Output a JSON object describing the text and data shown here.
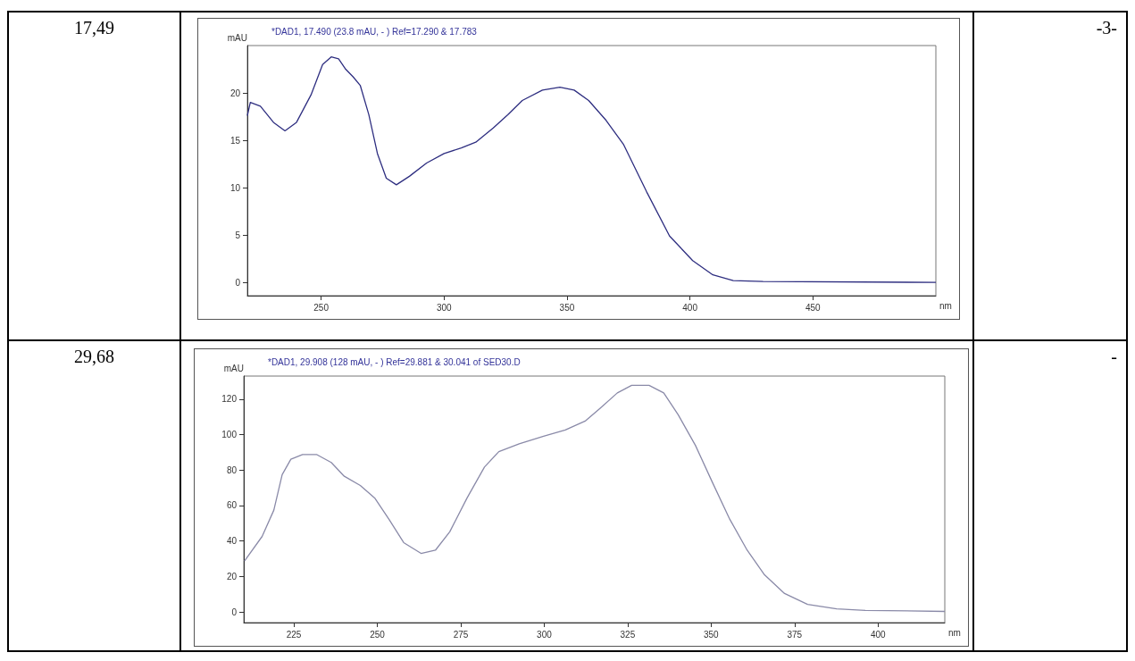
{
  "chart_data": [
    {
      "type": "line",
      "ylabel": "mAU",
      "xlabel": "nm",
      "xlim": [
        220,
        500
      ],
      "xticks": [
        250,
        300,
        350,
        400,
        450
      ],
      "ylim": [
        -1.4,
        25
      ],
      "yticks": [
        0,
        5,
        10,
        15,
        20
      ],
      "legend": "top",
      "grid": false,
      "annotations": [
        "17,49",
        "-3-"
      ],
      "series": [
        {
          "name": "*DAD1, 17.490 (23.8 mAU, - ) Ref=17.290 & 17.783",
          "color": "#2e2e80",
          "x": [
            220,
            221.2,
            225.3,
            230.6,
            235.3,
            240,
            245.9,
            250.6,
            254.1,
            257.1,
            260,
            263,
            265.9,
            269.4,
            272.9,
            276.5,
            280.6,
            285.9,
            292.9,
            300,
            307,
            312.9,
            320,
            325.9,
            331.8,
            340,
            347.1,
            352.9,
            358.8,
            365.9,
            372.9,
            382.3,
            391.7,
            401.1,
            409.3,
            417.6,
            429.7,
            500
          ],
          "values": [
            17.6,
            19.0,
            18.6,
            16.9,
            16.0,
            16.9,
            19.8,
            23.0,
            23.8,
            23.6,
            22.5,
            21.7,
            20.8,
            17.7,
            13.6,
            11.0,
            10.3,
            11.2,
            12.6,
            13.6,
            14.2,
            14.8,
            16.3,
            17.7,
            19.2,
            20.3,
            20.6,
            20.3,
            19.2,
            17.1,
            14.6,
            9.6,
            4.9,
            2.3,
            0.8,
            0.2,
            0.1,
            0
          ]
        }
      ]
    },
    {
      "type": "line",
      "ylabel": "mAU",
      "xlabel": "nm",
      "xlim": [
        210,
        420
      ],
      "xticks": [
        225,
        250,
        275,
        300,
        325,
        350,
        375,
        400
      ],
      "ylim": [
        -6,
        133
      ],
      "yticks": [
        0,
        20,
        40,
        60,
        80,
        100,
        120
      ],
      "legend": "top",
      "grid": false,
      "annotations": [
        "29,68",
        "-"
      ],
      "series": [
        {
          "name": "*DAD1, 29.908 (128 mAU, - ) Ref=29.881 & 30.041 of SED30.D",
          "color": "#8a8aa8",
          "x": [
            210.2,
            215.5,
            219,
            221.5,
            224.1,
            227.6,
            231.9,
            236.2,
            240.1,
            244.9,
            249.2,
            253.5,
            257.9,
            263.1,
            267.4,
            271.7,
            276.9,
            282.1,
            286.4,
            292.5,
            299.8,
            306.3,
            312.4,
            316.7,
            321.9,
            326.2,
            331.4,
            335.8,
            340.1,
            345.3,
            350.4,
            355.6,
            360.8,
            366,
            372,
            378.9,
            387.6,
            396.2,
            420
          ],
          "values": [
            28.7,
            42.6,
            57.4,
            77.4,
            86.1,
            88.7,
            88.7,
            84.3,
            76.5,
            71.3,
            64.3,
            52.2,
            39.1,
            33.0,
            34.8,
            45.2,
            64.3,
            81.7,
            90.4,
            94.8,
            99.1,
            102.6,
            107.8,
            114.8,
            123.5,
            127.8,
            127.8,
            123.5,
            111.3,
            93.9,
            73,
            52.2,
            34.8,
            20.9,
            10.4,
            4.3,
            1.7,
            0.9,
            0.3
          ]
        }
      ]
    }
  ]
}
